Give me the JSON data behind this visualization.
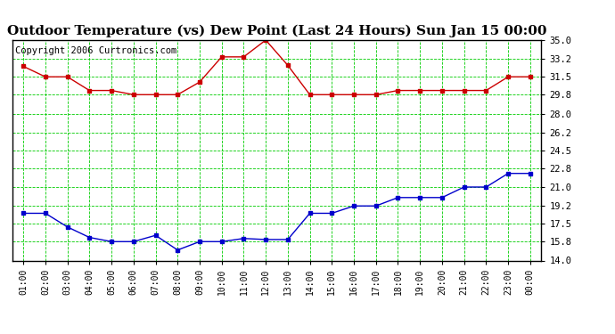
{
  "title": "Outdoor Temperature (vs) Dew Point (Last 24 Hours) Sun Jan 15 00:00",
  "copyright": "Copyright 2006 Curtronics.com",
  "x_labels": [
    "01:00",
    "02:00",
    "03:00",
    "04:00",
    "05:00",
    "06:00",
    "07:00",
    "08:00",
    "09:00",
    "10:00",
    "11:00",
    "12:00",
    "13:00",
    "14:00",
    "15:00",
    "16:00",
    "17:00",
    "18:00",
    "19:00",
    "20:00",
    "21:00",
    "22:00",
    "23:00",
    "00:00"
  ],
  "temp_red": [
    32.5,
    31.5,
    31.5,
    30.2,
    30.2,
    29.8,
    29.8,
    29.8,
    31.0,
    33.4,
    33.4,
    35.0,
    32.6,
    29.8,
    29.8,
    29.8,
    29.8,
    30.2,
    30.2,
    30.2,
    30.2,
    30.2,
    31.5,
    31.5
  ],
  "dew_blue": [
    18.5,
    18.5,
    17.2,
    16.2,
    15.8,
    15.8,
    16.4,
    15.0,
    15.8,
    15.8,
    16.1,
    16.0,
    16.0,
    18.5,
    18.5,
    19.2,
    19.2,
    20.0,
    20.0,
    20.0,
    21.0,
    21.0,
    22.3,
    22.3
  ],
  "ylim": [
    14.0,
    35.0
  ],
  "yticks": [
    14.0,
    15.8,
    17.5,
    19.2,
    21.0,
    22.8,
    24.5,
    26.2,
    28.0,
    29.8,
    31.5,
    33.2,
    35.0
  ],
  "bg_color": "#ffffff",
  "plot_bg": "#ffffff",
  "grid_color": "#00cc00",
  "line_color_red": "#cc0000",
  "line_color_blue": "#0000cc",
  "title_fontsize": 11,
  "copyright_fontsize": 7.5
}
